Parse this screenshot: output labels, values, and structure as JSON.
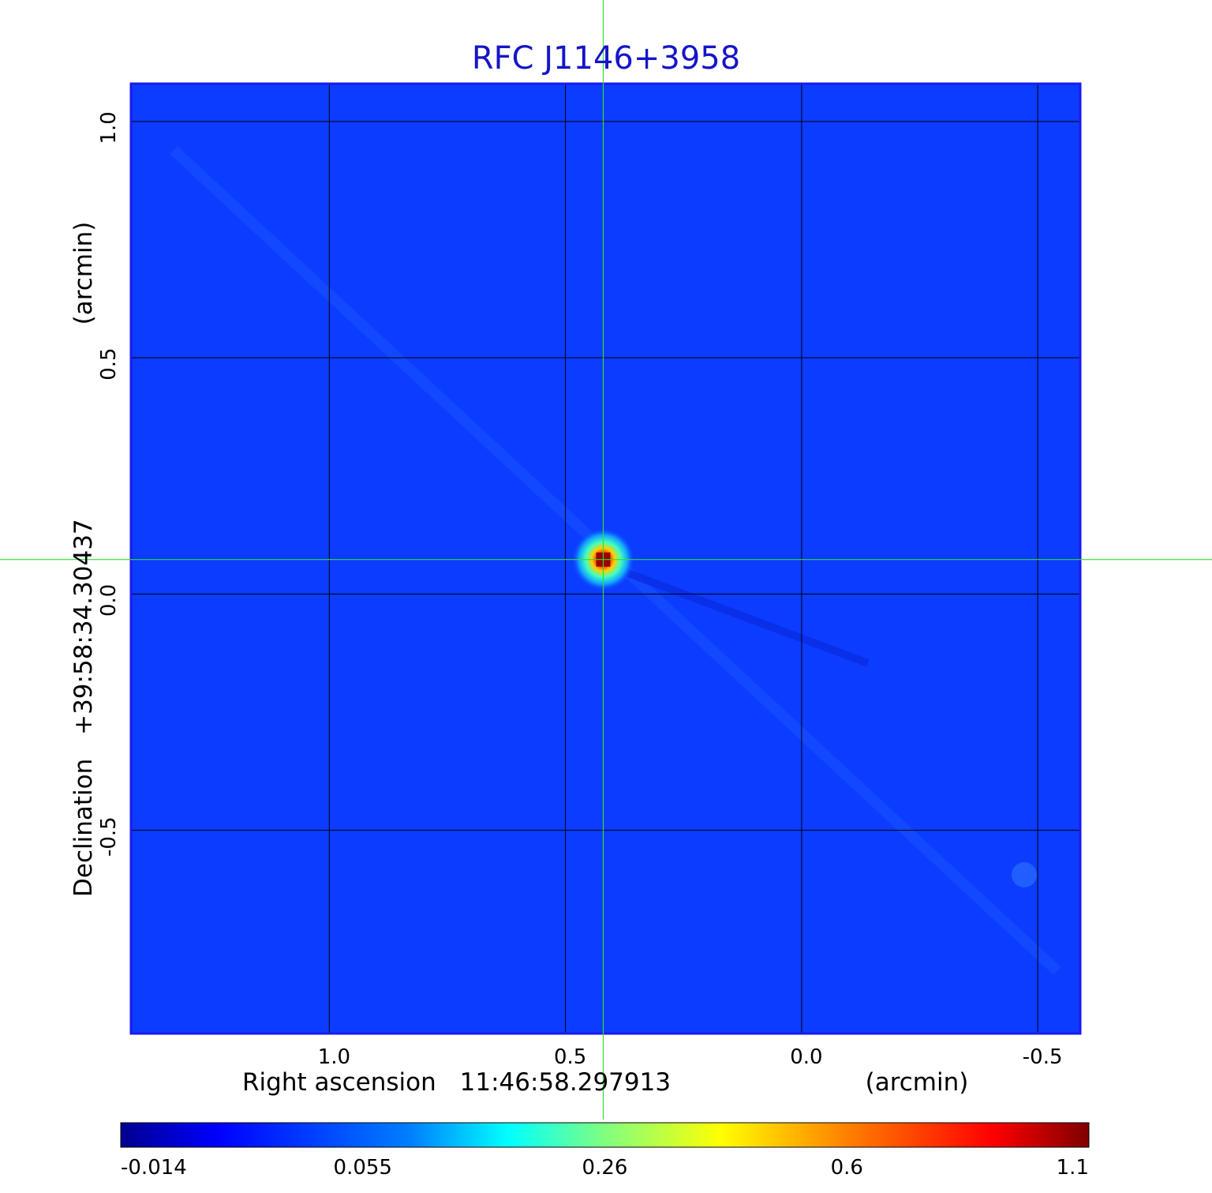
{
  "chart_data": {
    "type": "heatmap",
    "title": "RFC J1146+3958",
    "colors": {
      "title": "#1515c8",
      "frame": "#1a1af0",
      "background": "#0b3cff",
      "grid": "#000000",
      "crosshair": "#33dd33"
    },
    "grid": true,
    "x_axis": {
      "label_name": "Right ascension",
      "label_center": "11:46:58.297913",
      "label_unit": "(arcmin)",
      "ticks": [
        1.0,
        0.5,
        0.0,
        -0.5
      ],
      "tick_labels": [
        "1.0",
        "0.5",
        "0.0",
        "-0.5"
      ],
      "range": [
        1.42,
        -0.59
      ],
      "reversed": true
    },
    "y_axis": {
      "label_name": "Declination",
      "label_center": "+39:58:34.30437",
      "label_unit": "(arcmin)",
      "ticks": [
        1.0,
        0.5,
        0.0,
        -0.5
      ],
      "tick_labels": [
        "1.0",
        "0.5",
        "0.0",
        "-0.5"
      ],
      "range": [
        -0.93,
        1.08
      ]
    },
    "source": {
      "x": 0.42,
      "y": 0.073,
      "peak": 1.1
    },
    "crosshair": {
      "x": 0.42,
      "y": 0.073
    },
    "colorbar": {
      "orientation": "horizontal",
      "ticks": [
        -0.014,
        0.055,
        0.26,
        0.6,
        1.1
      ],
      "tick_labels": [
        "-0.014",
        "0.055",
        "0.26",
        "0.6",
        "1.1"
      ],
      "colormap": "jet"
    }
  }
}
